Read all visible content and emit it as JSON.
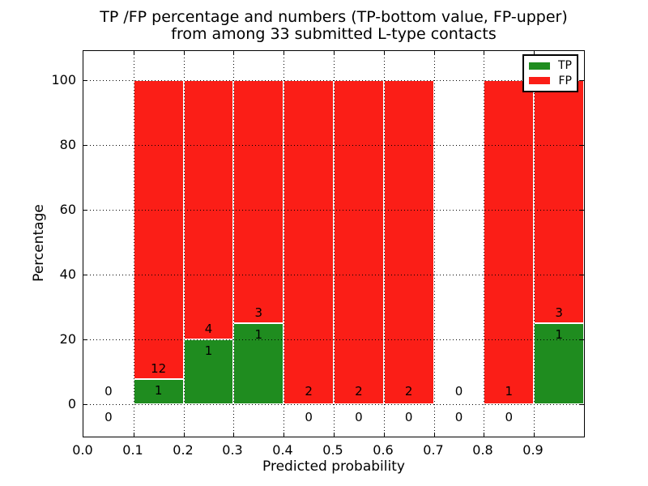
{
  "figure": {
    "title_line1": "TP /FP percentage and numbers (TP-bottom value, FP-upper)",
    "title_line2": "from among 33 submitted L-type contacts",
    "xlabel": "Predicted probability",
    "ylabel": "Percentage"
  },
  "legend": {
    "position": "upper-right",
    "items": [
      {
        "label": "TP",
        "color": "#1f8c1f"
      },
      {
        "label": "FP",
        "color": "#fb1e17"
      }
    ]
  },
  "chart_data": {
    "type": "bar",
    "stacked": true,
    "title": "TP /FP percentage and numbers (TP-bottom value, FP-upper)\nfrom among 33 submitted L-type contacts",
    "xlabel": "Predicted probability",
    "ylabel": "Percentage",
    "xlim": [
      0.0,
      1.0
    ],
    "ylim": [
      -10,
      109
    ],
    "grid": "dotted",
    "legend_position": "upper right",
    "bin_width": 0.1,
    "total_contacts": 33,
    "categories": [
      "0.0-0.1",
      "0.1-0.2",
      "0.2-0.3",
      "0.3-0.4",
      "0.4-0.5",
      "0.5-0.6",
      "0.6-0.7",
      "0.7-0.8",
      "0.8-0.9",
      "0.9-1.0"
    ],
    "x_tick_labels": [
      "0.0",
      "0.1",
      "0.2",
      "0.3",
      "0.4",
      "0.5",
      "0.6",
      "0.7",
      "0.8",
      "0.9"
    ],
    "y_tick_labels": [
      "0",
      "20",
      "40",
      "60",
      "80",
      "100"
    ],
    "y_tick_values": [
      0,
      20,
      40,
      60,
      80,
      100
    ],
    "series": [
      {
        "name": "TP",
        "color": "#1f8c1f",
        "counts": [
          0,
          1,
          1,
          1,
          0,
          0,
          0,
          0,
          0,
          1
        ],
        "percent": [
          0,
          7.7,
          20,
          25,
          0,
          0,
          0,
          0,
          0,
          25
        ]
      },
      {
        "name": "FP",
        "color": "#fb1e17",
        "counts": [
          0,
          12,
          4,
          3,
          2,
          2,
          2,
          0,
          1,
          3
        ],
        "percent": [
          0,
          92.3,
          80,
          75,
          100,
          100,
          100,
          0,
          100,
          75
        ]
      }
    ]
  }
}
